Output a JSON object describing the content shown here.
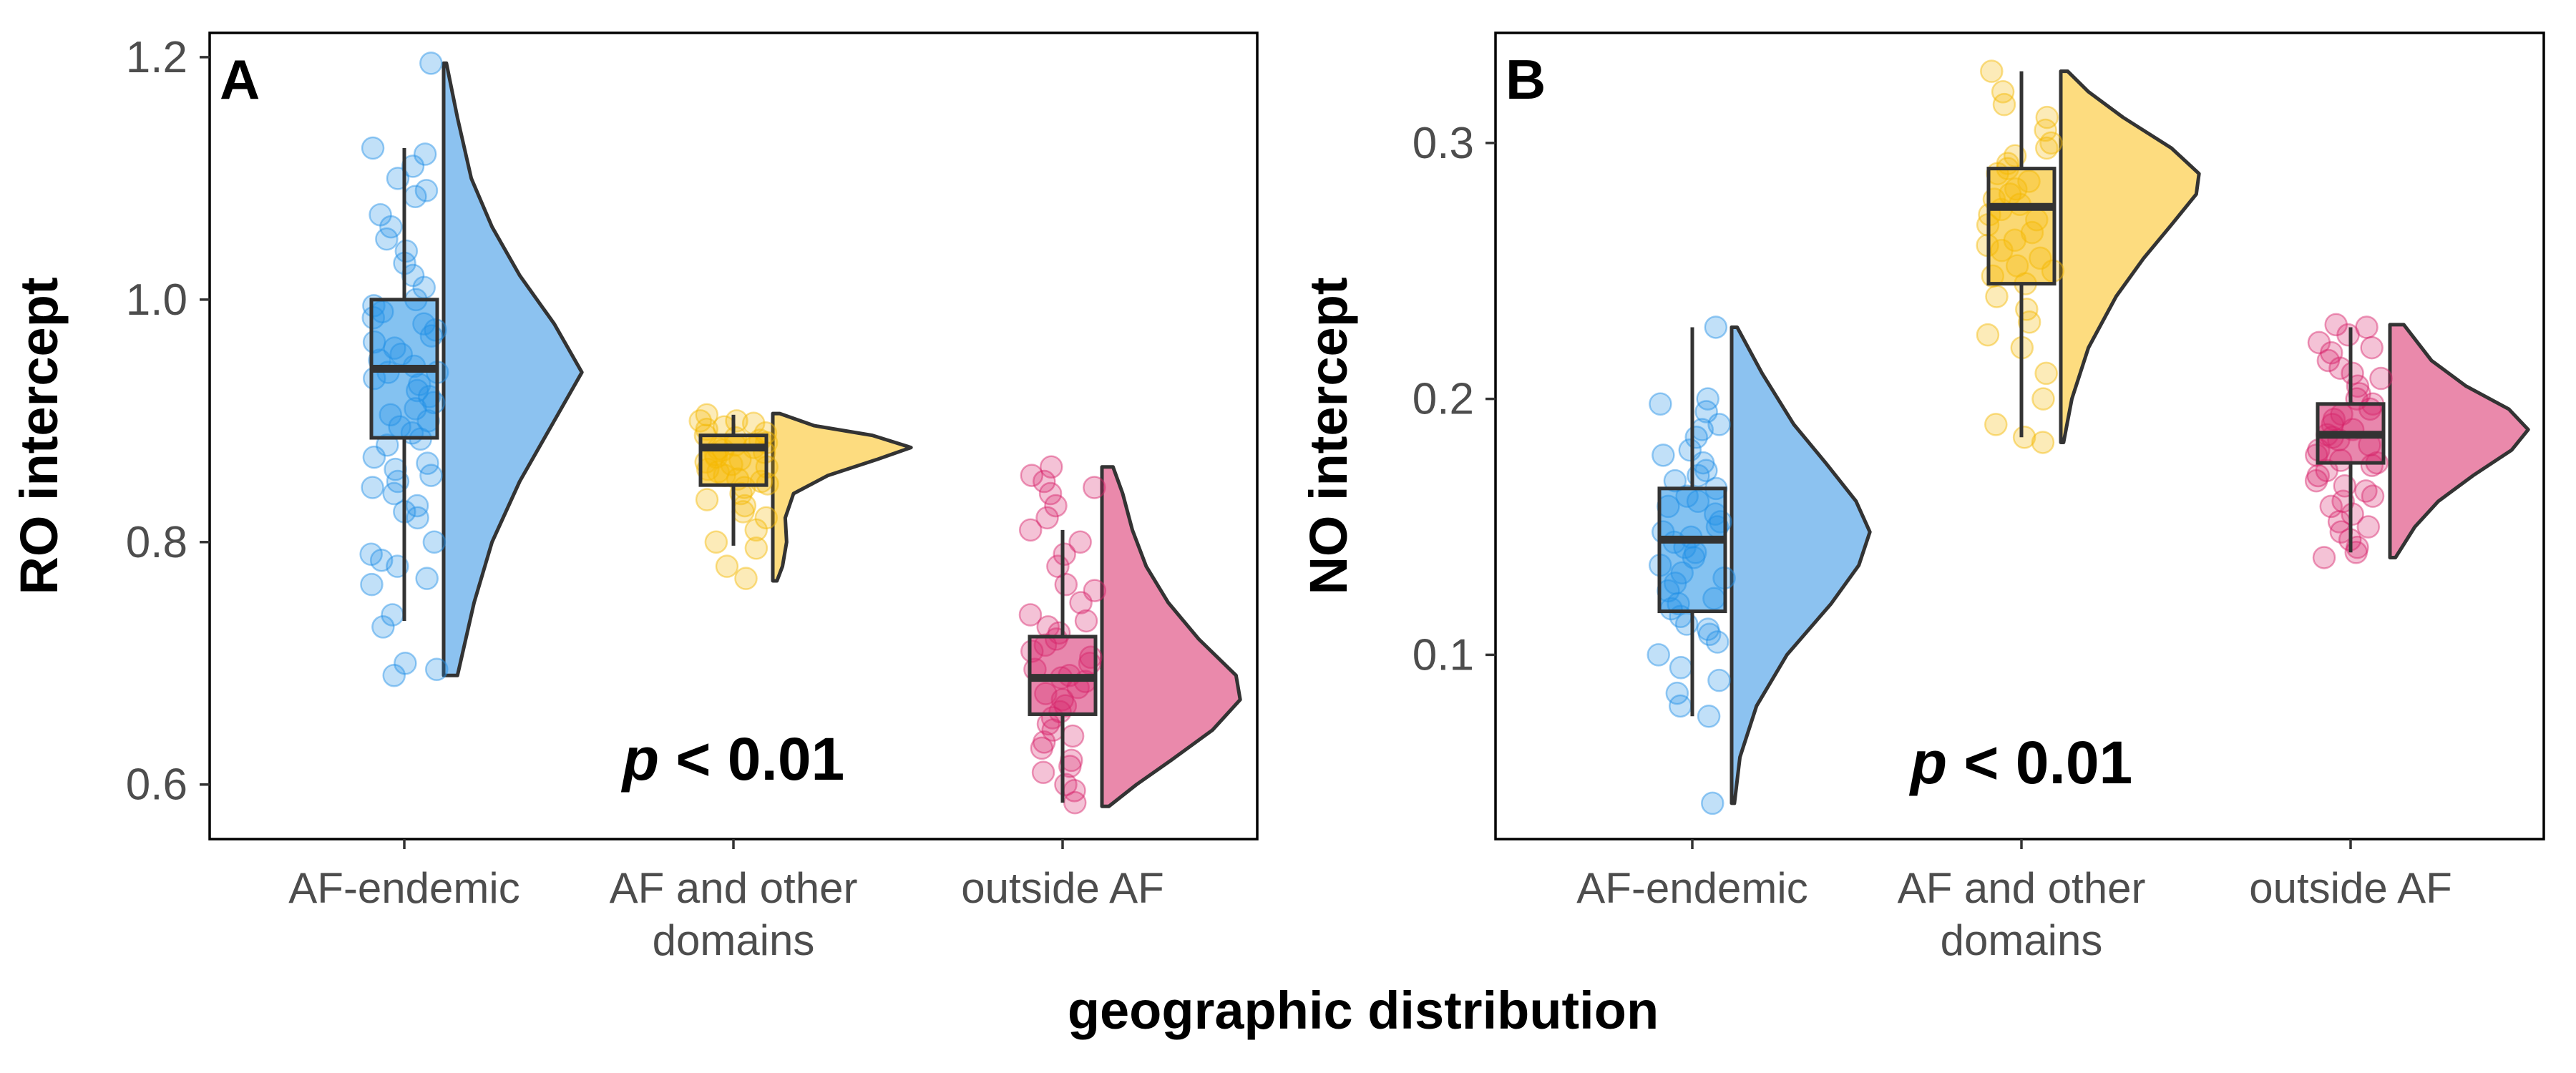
{
  "chart_data": [
    {
      "type": "raincloud",
      "panel": "A",
      "ylabel": "RO intercept",
      "y_ticks": [
        "0.6",
        "0.8",
        "1.0",
        "1.2"
      ],
      "y_tick_values": [
        0.6,
        0.8,
        1.0,
        1.2
      ],
      "ylim": [
        0.555,
        1.22
      ],
      "categories": [
        "AF-endemic",
        "AF and other\ndomains",
        "outside AF"
      ],
      "annotation": {
        "italic": "p",
        "rest": " < 0.01"
      },
      "groups": [
        {
          "category": "AF-endemic",
          "color": "#1f8fe6",
          "fill": "#8cc2f0",
          "min": 0.735,
          "q1": 0.886,
          "median": 0.943,
          "q3": 1.0,
          "max": 1.125,
          "density_range": [
            0.69,
            1.195
          ],
          "density": [
            [
              0.69,
              0.1
            ],
            [
              0.75,
              0.22
            ],
            [
              0.8,
              0.35
            ],
            [
              0.85,
              0.55
            ],
            [
              0.9,
              0.8
            ],
            [
              0.94,
              1.0
            ],
            [
              0.98,
              0.8
            ],
            [
              1.02,
              0.55
            ],
            [
              1.06,
              0.35
            ],
            [
              1.1,
              0.2
            ],
            [
              1.15,
              0.1
            ],
            [
              1.195,
              0.02
            ]
          ],
          "points": [
            1.195,
            1.125,
            1.12,
            1.11,
            1.1,
            1.09,
            1.085,
            1.07,
            1.06,
            1.05,
            1.04,
            1.03,
            1.02,
            1.01,
            1.0,
            0.995,
            0.99,
            0.985,
            0.98,
            0.975,
            0.97,
            0.965,
            0.96,
            0.955,
            0.95,
            0.945,
            0.94,
            0.94,
            0.935,
            0.93,
            0.925,
            0.92,
            0.915,
            0.91,
            0.905,
            0.9,
            0.895,
            0.89,
            0.885,
            0.88,
            0.87,
            0.865,
            0.86,
            0.855,
            0.85,
            0.845,
            0.84,
            0.83,
            0.825,
            0.82,
            0.8,
            0.79,
            0.785,
            0.78,
            0.77,
            0.765,
            0.74,
            0.73,
            0.7,
            0.695,
            0.69
          ]
        },
        {
          "category": "AF and other domains",
          "color": "#f5b800",
          "fill": "#fddc7f",
          "min": 0.797,
          "q1": 0.847,
          "median": 0.878,
          "q3": 0.888,
          "max": 0.905,
          "density_range": [
            0.768,
            0.906
          ],
          "density": [
            [
              0.768,
              0.03
            ],
            [
              0.78,
              0.07
            ],
            [
              0.8,
              0.1
            ],
            [
              0.82,
              0.09
            ],
            [
              0.84,
              0.15
            ],
            [
              0.855,
              0.4
            ],
            [
              0.868,
              0.75
            ],
            [
              0.878,
              1.0
            ],
            [
              0.888,
              0.72
            ],
            [
              0.896,
              0.3
            ],
            [
              0.906,
              0.05
            ]
          ],
          "points": [
            0.905,
            0.9,
            0.9,
            0.898,
            0.895,
            0.893,
            0.89,
            0.888,
            0.886,
            0.884,
            0.882,
            0.88,
            0.878,
            0.877,
            0.876,
            0.874,
            0.872,
            0.87,
            0.868,
            0.866,
            0.864,
            0.862,
            0.86,
            0.858,
            0.855,
            0.852,
            0.85,
            0.848,
            0.845,
            0.84,
            0.835,
            0.83,
            0.825,
            0.82,
            0.81,
            0.8,
            0.795,
            0.78,
            0.77
          ]
        },
        {
          "category": "outside AF",
          "color": "#d6246a",
          "fill": "#ea89ab",
          "min": 0.585,
          "q1": 0.658,
          "median": 0.688,
          "q3": 0.722,
          "max": 0.81,
          "density_range": [
            0.582,
            0.862
          ],
          "density": [
            [
              0.582,
              0.05
            ],
            [
              0.6,
              0.25
            ],
            [
              0.62,
              0.5
            ],
            [
              0.645,
              0.8
            ],
            [
              0.67,
              1.0
            ],
            [
              0.69,
              0.97
            ],
            [
              0.72,
              0.7
            ],
            [
              0.75,
              0.48
            ],
            [
              0.78,
              0.32
            ],
            [
              0.81,
              0.22
            ],
            [
              0.84,
              0.15
            ],
            [
              0.862,
              0.08
            ]
          ],
          "points": [
            0.862,
            0.855,
            0.85,
            0.845,
            0.84,
            0.83,
            0.82,
            0.81,
            0.8,
            0.79,
            0.78,
            0.765,
            0.76,
            0.75,
            0.74,
            0.735,
            0.73,
            0.725,
            0.72,
            0.715,
            0.71,
            0.705,
            0.7,
            0.695,
            0.69,
            0.688,
            0.685,
            0.68,
            0.675,
            0.67,
            0.665,
            0.66,
            0.655,
            0.65,
            0.645,
            0.64,
            0.635,
            0.63,
            0.62,
            0.615,
            0.61,
            0.6,
            0.595,
            0.585
          ]
        }
      ]
    },
    {
      "type": "raincloud",
      "panel": "B",
      "ylabel": "NO intercept",
      "y_ticks": [
        "0.1",
        "0.2",
        "0.3"
      ],
      "y_tick_values": [
        0.1,
        0.2,
        0.3
      ],
      "ylim": [
        0.028,
        0.343
      ],
      "categories": [
        "AF-endemic",
        "AF and other\ndomains",
        "outside AF"
      ],
      "annotation": {
        "italic": "p",
        "rest": " < 0.01"
      },
      "groups": [
        {
          "category": "AF-endemic",
          "color": "#1f8fe6",
          "fill": "#8cc2f0",
          "min": 0.076,
          "q1": 0.117,
          "median": 0.145,
          "q3": 0.165,
          "max": 0.228,
          "density_range": [
            0.042,
            0.228
          ],
          "density": [
            [
              0.042,
              0.02
            ],
            [
              0.06,
              0.06
            ],
            [
              0.08,
              0.18
            ],
            [
              0.1,
              0.4
            ],
            [
              0.12,
              0.72
            ],
            [
              0.135,
              0.92
            ],
            [
              0.148,
              1.0
            ],
            [
              0.16,
              0.9
            ],
            [
              0.175,
              0.68
            ],
            [
              0.19,
              0.45
            ],
            [
              0.21,
              0.22
            ],
            [
              0.228,
              0.04
            ]
          ],
          "points": [
            0.228,
            0.2,
            0.198,
            0.195,
            0.19,
            0.188,
            0.185,
            0.18,
            0.178,
            0.175,
            0.172,
            0.17,
            0.168,
            0.165,
            0.162,
            0.16,
            0.158,
            0.155,
            0.152,
            0.15,
            0.148,
            0.146,
            0.144,
            0.142,
            0.14,
            0.138,
            0.135,
            0.132,
            0.13,
            0.128,
            0.125,
            0.122,
            0.12,
            0.118,
            0.115,
            0.112,
            0.11,
            0.108,
            0.105,
            0.1,
            0.095,
            0.09,
            0.085,
            0.08,
            0.076,
            0.042
          ]
        },
        {
          "category": "AF and other domains",
          "color": "#f5b800",
          "fill": "#fddc7f",
          "min": 0.185,
          "q1": 0.245,
          "median": 0.275,
          "q3": 0.29,
          "max": 0.328,
          "density_range": [
            0.183,
            0.328
          ],
          "density": [
            [
              0.183,
              0.02
            ],
            [
              0.2,
              0.08
            ],
            [
              0.22,
              0.2
            ],
            [
              0.24,
              0.4
            ],
            [
              0.255,
              0.6
            ],
            [
              0.268,
              0.8
            ],
            [
              0.28,
              0.98
            ],
            [
              0.288,
              1.0
            ],
            [
              0.298,
              0.8
            ],
            [
              0.31,
              0.45
            ],
            [
              0.32,
              0.2
            ],
            [
              0.328,
              0.05
            ]
          ],
          "points": [
            0.328,
            0.32,
            0.315,
            0.31,
            0.305,
            0.3,
            0.298,
            0.295,
            0.292,
            0.29,
            0.288,
            0.285,
            0.282,
            0.28,
            0.278,
            0.276,
            0.274,
            0.272,
            0.27,
            0.268,
            0.265,
            0.262,
            0.26,
            0.258,
            0.255,
            0.252,
            0.25,
            0.248,
            0.245,
            0.24,
            0.235,
            0.23,
            0.225,
            0.22,
            0.21,
            0.2,
            0.19,
            0.185,
            0.183
          ]
        },
        {
          "category": "outside AF",
          "color": "#d6246a",
          "fill": "#ea89ab",
          "min": 0.14,
          "q1": 0.175,
          "median": 0.186,
          "q3": 0.198,
          "max": 0.228,
          "density_range": [
            0.138,
            0.229
          ],
          "density": [
            [
              0.138,
              0.04
            ],
            [
              0.15,
              0.18
            ],
            [
              0.16,
              0.35
            ],
            [
              0.17,
              0.6
            ],
            [
              0.18,
              0.88
            ],
            [
              0.188,
              1.0
            ],
            [
              0.196,
              0.86
            ],
            [
              0.205,
              0.55
            ],
            [
              0.215,
              0.3
            ],
            [
              0.229,
              0.1
            ]
          ],
          "points": [
            0.229,
            0.228,
            0.225,
            0.222,
            0.22,
            0.218,
            0.215,
            0.212,
            0.21,
            0.208,
            0.205,
            0.202,
            0.2,
            0.198,
            0.196,
            0.194,
            0.192,
            0.19,
            0.188,
            0.186,
            0.185,
            0.184,
            0.182,
            0.18,
            0.178,
            0.176,
            0.175,
            0.174,
            0.172,
            0.17,
            0.168,
            0.166,
            0.164,
            0.162,
            0.16,
            0.158,
            0.155,
            0.152,
            0.15,
            0.148,
            0.145,
            0.142,
            0.14,
            0.138
          ]
        }
      ]
    }
  ],
  "xlabel": "geographic distribution"
}
